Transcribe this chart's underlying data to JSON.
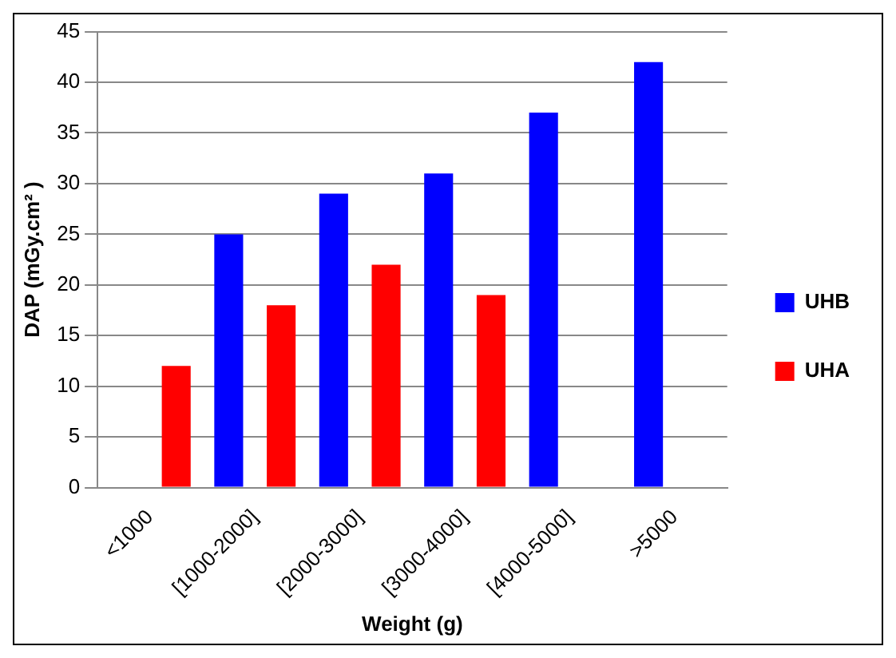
{
  "chart_data": {
    "type": "bar",
    "xlabel": "Weight (g)",
    "ylabel": "DAP (mGy.cm² )",
    "categories": [
      "<1000",
      "[1000-2000]",
      "[2000-3000]",
      "[3000-4000]",
      "[4000-5000]",
      ">5000"
    ],
    "series": [
      {
        "name": "UHB",
        "color": "#0000ff",
        "values": [
          null,
          25,
          29,
          31,
          37,
          42
        ]
      },
      {
        "name": "UHA",
        "color": "#ff0000",
        "values": [
          12,
          18,
          22,
          19,
          null,
          null
        ]
      }
    ],
    "ylim": [
      0,
      45
    ],
    "yticks": [
      0,
      5,
      10,
      15,
      20,
      25,
      30,
      35,
      40,
      45
    ],
    "grid": "y",
    "legend": "right"
  }
}
